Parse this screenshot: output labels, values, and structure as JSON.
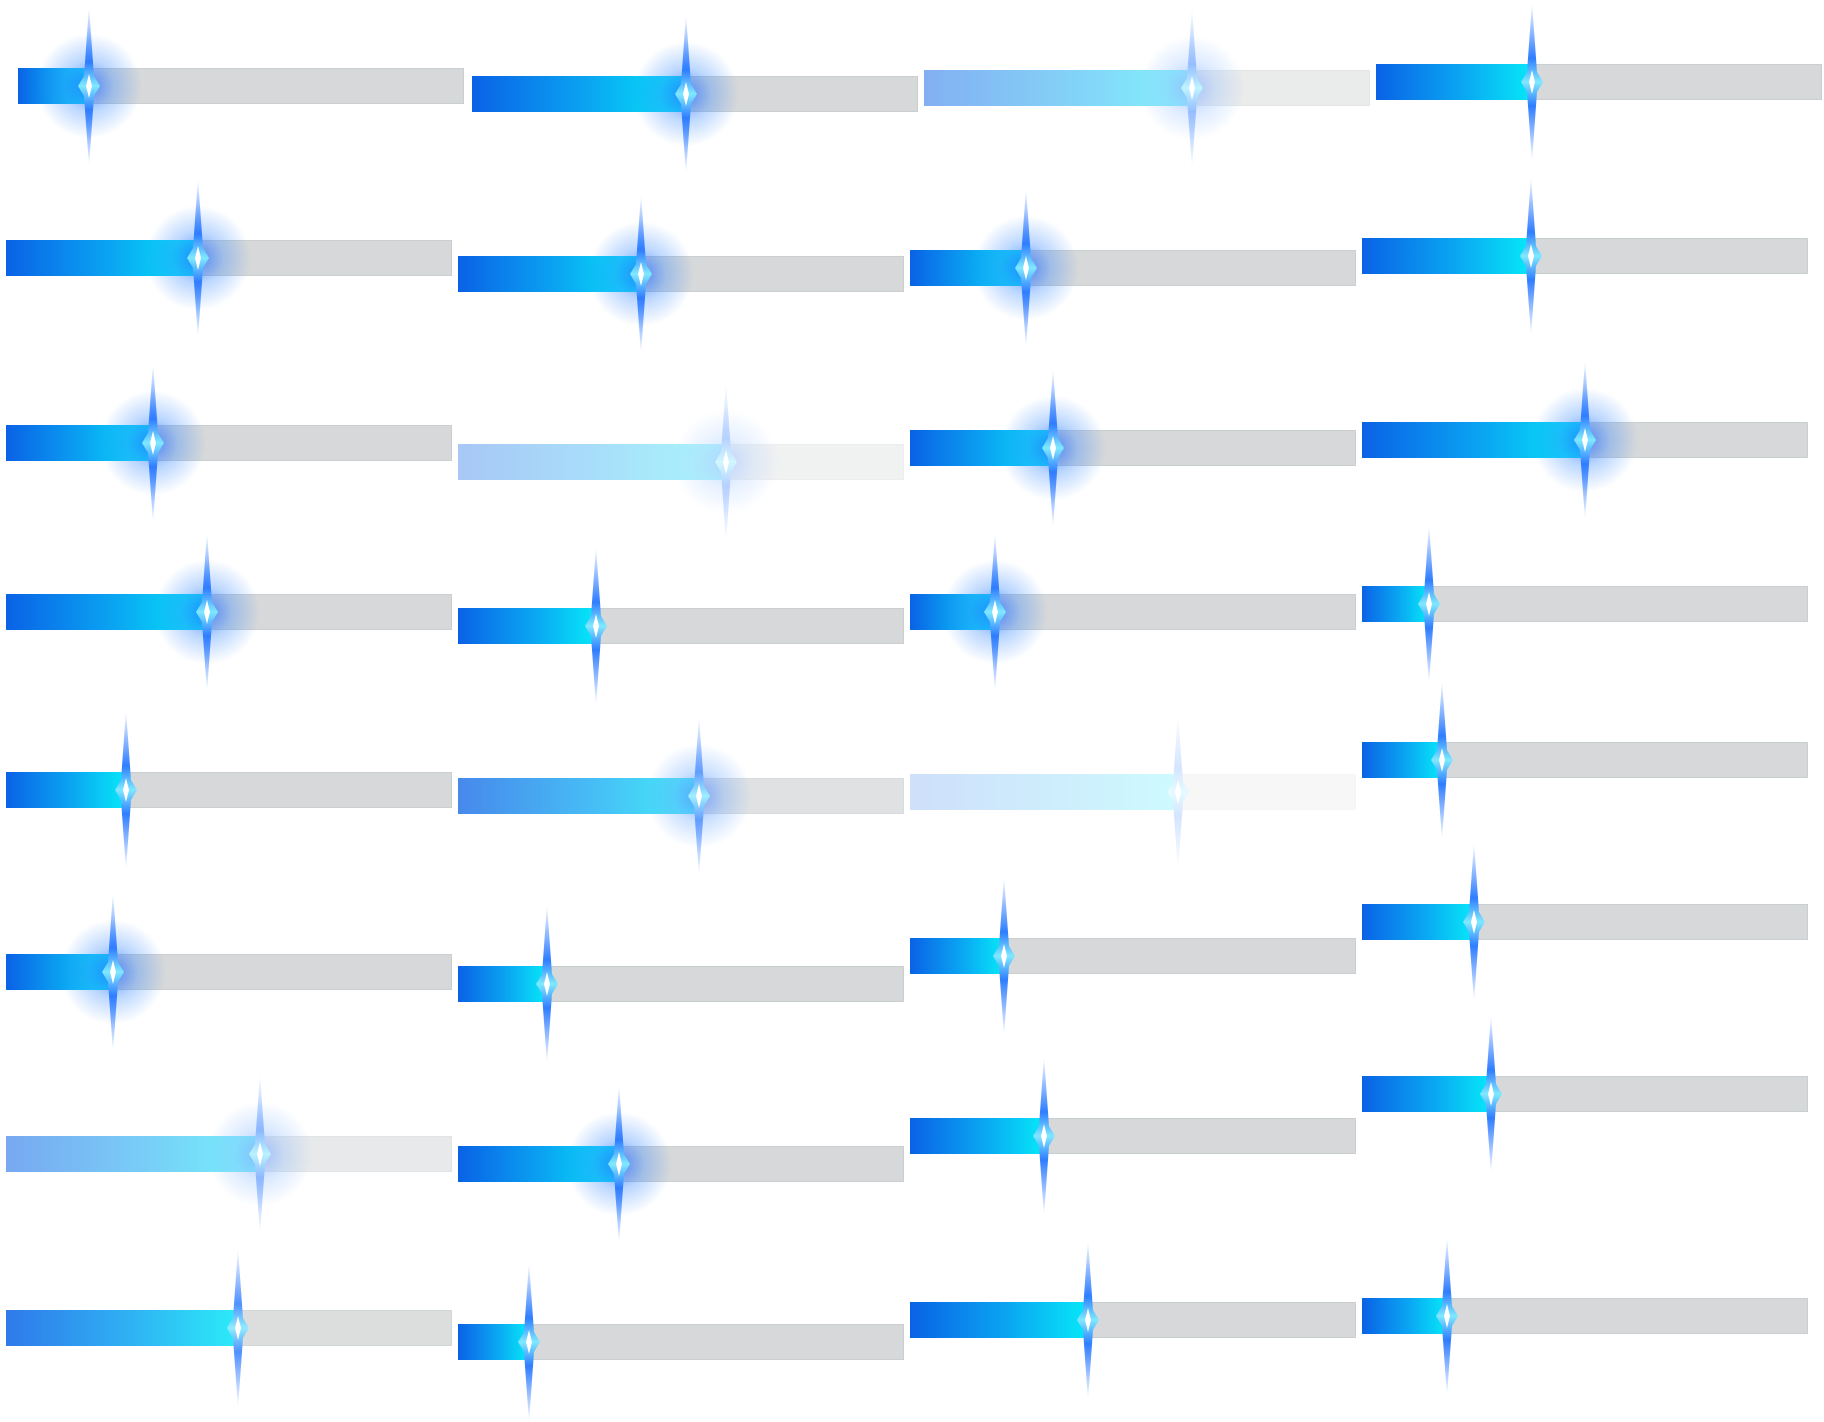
{
  "colors": {
    "fill_start": "#0a62e6",
    "fill_end": "#06e8f8",
    "track": "#d6d8d9",
    "spark_core": "#ffffff",
    "spark_edge": "#2f7dff"
  },
  "icon_name": "progress-spark-icon",
  "bars": [
    {
      "col": 0,
      "row": 0,
      "progress": 0.16,
      "opacity": 1.0,
      "glow": true
    },
    {
      "col": 1,
      "row": 0,
      "progress": 0.48,
      "opacity": 1.0,
      "glow": true
    },
    {
      "col": 2,
      "row": 0,
      "progress": 0.6,
      "opacity": 0.5,
      "glow": true
    },
    {
      "col": 3,
      "row": 0,
      "progress": 0.35,
      "opacity": 1.0,
      "glow": false
    },
    {
      "col": 0,
      "row": 1,
      "progress": 0.43,
      "opacity": 1.0,
      "glow": true
    },
    {
      "col": 1,
      "row": 1,
      "progress": 0.41,
      "opacity": 1.0,
      "glow": true
    },
    {
      "col": 2,
      "row": 1,
      "progress": 0.26,
      "opacity": 1.0,
      "glow": true
    },
    {
      "col": 3,
      "row": 1,
      "progress": 0.38,
      "opacity": 1.0,
      "glow": false
    },
    {
      "col": 0,
      "row": 2,
      "progress": 0.33,
      "opacity": 1.0,
      "glow": true
    },
    {
      "col": 1,
      "row": 2,
      "progress": 0.6,
      "opacity": 0.35,
      "glow": true
    },
    {
      "col": 2,
      "row": 2,
      "progress": 0.32,
      "opacity": 1.0,
      "glow": true
    },
    {
      "col": 3,
      "row": 2,
      "progress": 0.5,
      "opacity": 1.0,
      "glow": true
    },
    {
      "col": 0,
      "row": 3,
      "progress": 0.45,
      "opacity": 1.0,
      "glow": true
    },
    {
      "col": 1,
      "row": 3,
      "progress": 0.31,
      "opacity": 1.0,
      "glow": false
    },
    {
      "col": 2,
      "row": 3,
      "progress": 0.19,
      "opacity": 1.0,
      "glow": true
    },
    {
      "col": 3,
      "row": 3,
      "progress": 0.15,
      "opacity": 1.0,
      "glow": false
    },
    {
      "col": 0,
      "row": 4,
      "progress": 0.27,
      "opacity": 1.0,
      "glow": false
    },
    {
      "col": 1,
      "row": 4,
      "progress": 0.54,
      "opacity": 0.75,
      "glow": true
    },
    {
      "col": 2,
      "row": 4,
      "progress": 0.6,
      "opacity": 0.2,
      "glow": false
    },
    {
      "col": 3,
      "row": 4,
      "progress": 0.18,
      "opacity": 1.0,
      "glow": false
    },
    {
      "col": 0,
      "row": 5,
      "progress": 0.24,
      "opacity": 1.0,
      "glow": true
    },
    {
      "col": 1,
      "row": 5,
      "progress": 0.2,
      "opacity": 1.0,
      "glow": false
    },
    {
      "col": 2,
      "row": 5,
      "progress": 0.21,
      "opacity": 1.0,
      "glow": false
    },
    {
      "col": 3,
      "row": 5,
      "progress": 0.25,
      "opacity": 1.0,
      "glow": false
    },
    {
      "col": 0,
      "row": 6,
      "progress": 0.57,
      "opacity": 0.55,
      "glow": true
    },
    {
      "col": 1,
      "row": 6,
      "progress": 0.36,
      "opacity": 1.0,
      "glow": true
    },
    {
      "col": 2,
      "row": 6,
      "progress": 0.3,
      "opacity": 1.0,
      "glow": false
    },
    {
      "col": 3,
      "row": 6,
      "progress": 0.29,
      "opacity": 1.0,
      "glow": false
    },
    {
      "col": 0,
      "row": 7,
      "progress": 0.52,
      "opacity": 0.85,
      "glow": false
    },
    {
      "col": 1,
      "row": 7,
      "progress": 0.16,
      "opacity": 1.0,
      "glow": false
    },
    {
      "col": 2,
      "row": 7,
      "progress": 0.4,
      "opacity": 1.0,
      "glow": false
    },
    {
      "col": 3,
      "row": 7,
      "progress": 0.19,
      "opacity": 1.0,
      "glow": false
    }
  ]
}
